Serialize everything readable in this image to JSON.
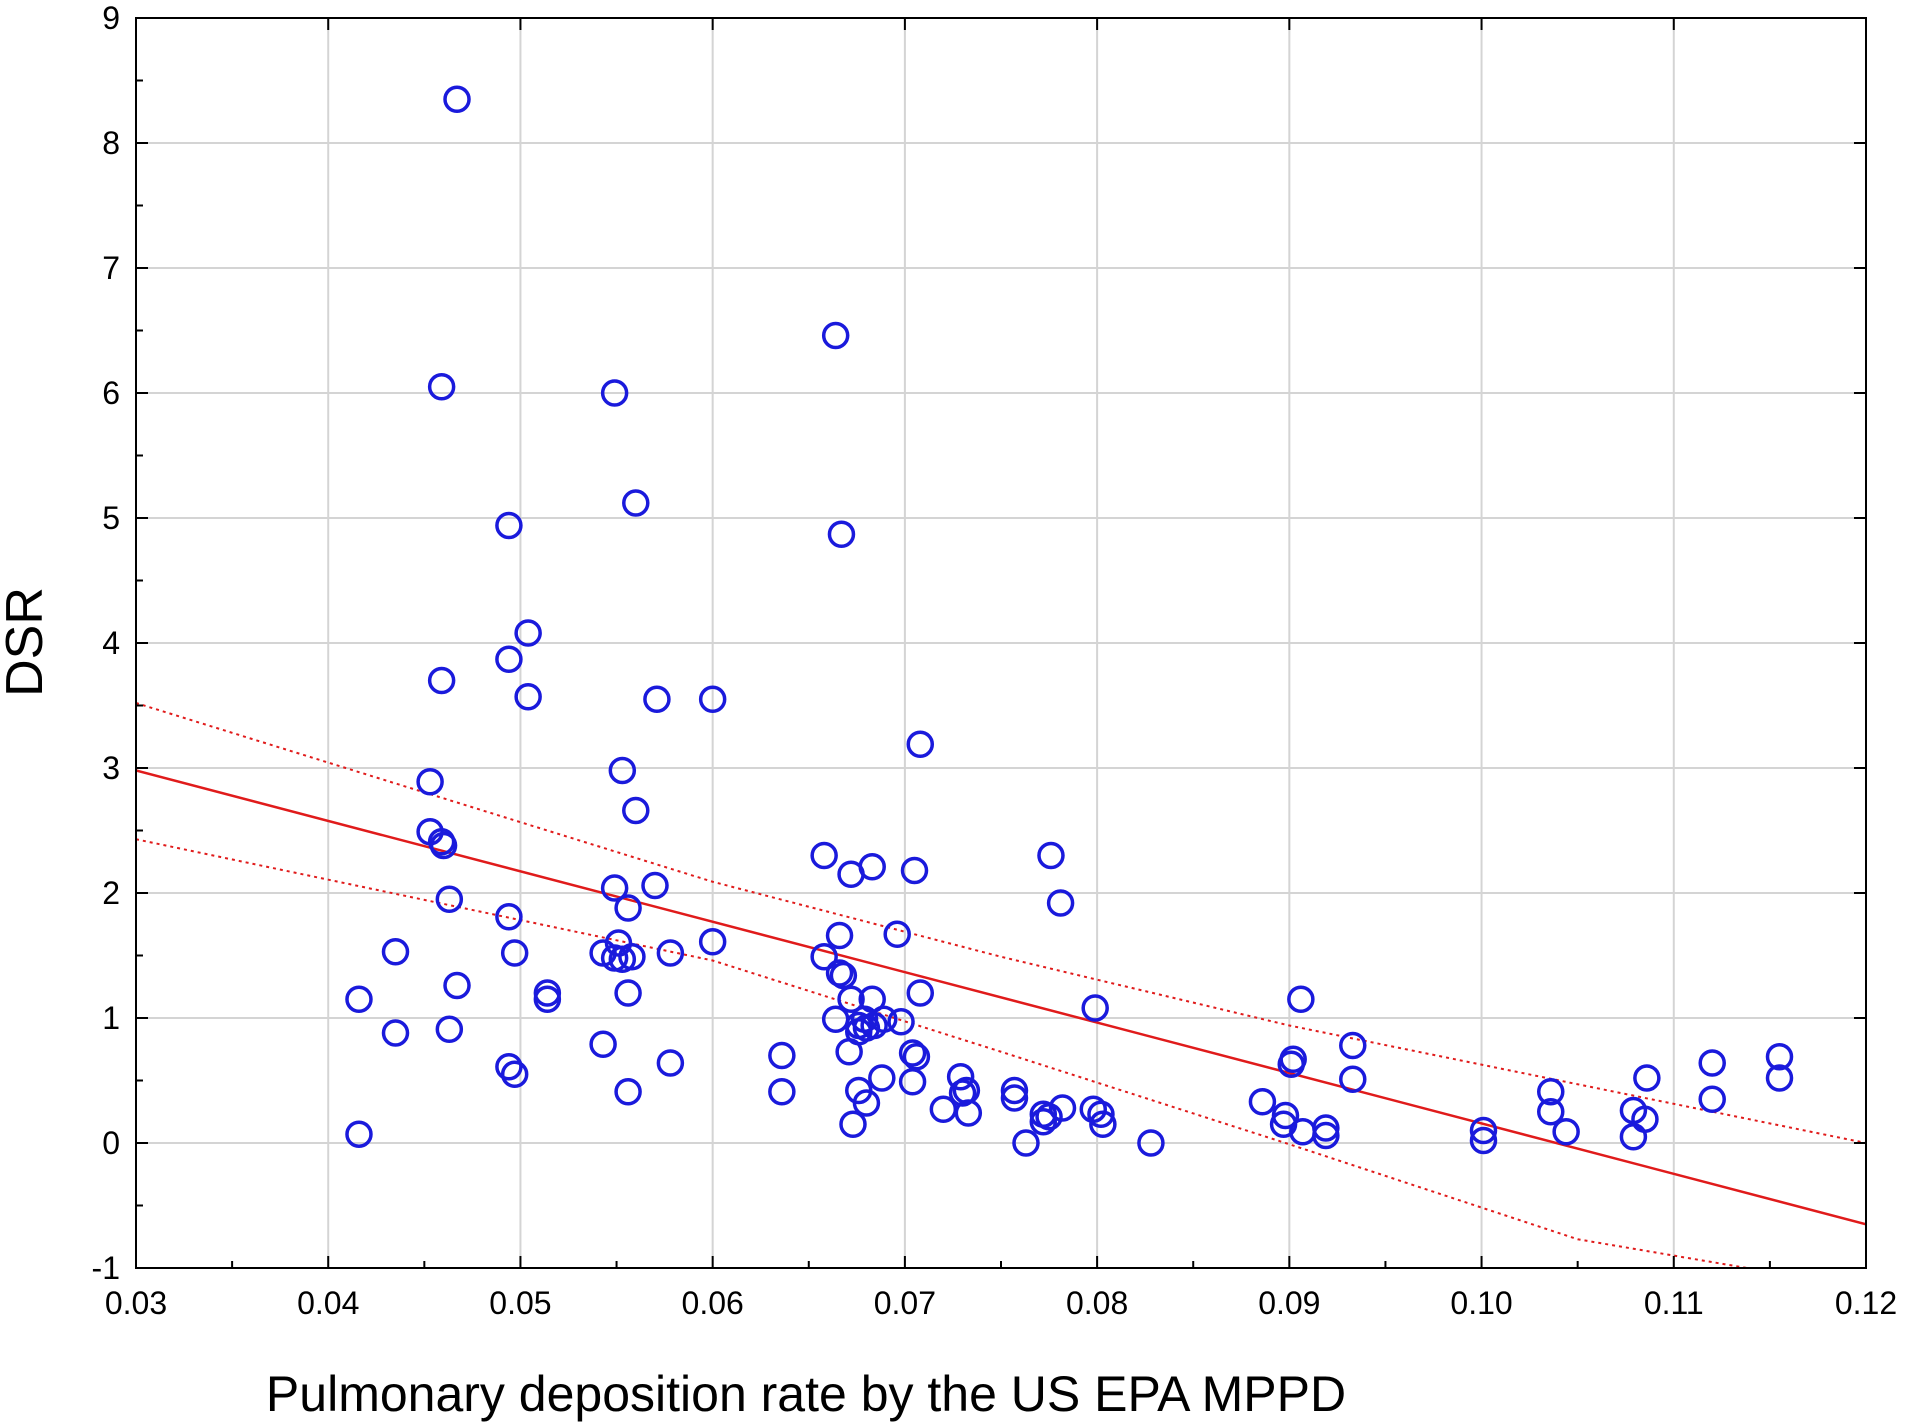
{
  "chart_data": {
    "type": "scatter",
    "title": "",
    "xlabel": "Pulmonary deposition rate by the US EPA MPPD",
    "ylabel": "DSR",
    "xlim": [
      0.03,
      0.12
    ],
    "ylim": [
      -1,
      9
    ],
    "x_ticks": [
      0.03,
      0.04,
      0.05,
      0.06,
      0.07,
      0.08,
      0.09,
      0.1,
      0.11,
      0.12
    ],
    "x_tick_labels": [
      "0.03",
      "0.04",
      "0.05",
      "0.06",
      "0.07",
      "0.08",
      "0.09",
      "0.10",
      "0.11",
      "0.12"
    ],
    "y_ticks": [
      -1,
      0,
      1,
      2,
      3,
      4,
      5,
      6,
      7,
      8,
      9
    ],
    "y_tick_labels": [
      "-1",
      "0",
      "1",
      "2",
      "3",
      "4",
      "5",
      "6",
      "7",
      "8",
      "9"
    ],
    "grid": true,
    "legend": "none",
    "colors": {
      "points": "#1a1adc",
      "fit": "#e01b1b",
      "ci": "#e01b1b",
      "grid": "#d4d4d4",
      "axes": "#000000"
    },
    "series": [
      {
        "name": "Observations",
        "marker": "open-circle",
        "points": [
          [
            0.0467,
            8.35
          ],
          [
            0.0664,
            6.46
          ],
          [
            0.0459,
            6.05
          ],
          [
            0.0549,
            6.0
          ],
          [
            0.056,
            5.12
          ],
          [
            0.0494,
            4.94
          ],
          [
            0.0667,
            4.87
          ],
          [
            0.0504,
            4.08
          ],
          [
            0.0494,
            3.87
          ],
          [
            0.0459,
            3.7
          ],
          [
            0.0504,
            3.57
          ],
          [
            0.0571,
            3.55
          ],
          [
            0.06,
            3.55
          ],
          [
            0.0708,
            3.19
          ],
          [
            0.0453,
            2.89
          ],
          [
            0.0553,
            2.98
          ],
          [
            0.056,
            2.66
          ],
          [
            0.0453,
            2.49
          ],
          [
            0.0459,
            2.41
          ],
          [
            0.046,
            2.38
          ],
          [
            0.0658,
            2.3
          ],
          [
            0.0672,
            2.15
          ],
          [
            0.0683,
            2.21
          ],
          [
            0.0705,
            2.18
          ],
          [
            0.0776,
            2.3
          ],
          [
            0.0781,
            1.92
          ],
          [
            0.0549,
            2.04
          ],
          [
            0.057,
            2.06
          ],
          [
            0.0463,
            1.95
          ],
          [
            0.0556,
            1.88
          ],
          [
            0.0494,
            1.81
          ],
          [
            0.0696,
            1.67
          ],
          [
            0.0666,
            1.66
          ],
          [
            0.06,
            1.61
          ],
          [
            0.0551,
            1.6
          ],
          [
            0.0435,
            1.53
          ],
          [
            0.0497,
            1.52
          ],
          [
            0.0543,
            1.52
          ],
          [
            0.0578,
            1.52
          ],
          [
            0.0549,
            1.48
          ],
          [
            0.0553,
            1.47
          ],
          [
            0.0558,
            1.49
          ],
          [
            0.0658,
            1.49
          ],
          [
            0.0666,
            1.36
          ],
          [
            0.0668,
            1.34
          ],
          [
            0.0467,
            1.26
          ],
          [
            0.0708,
            1.2
          ],
          [
            0.0514,
            1.2
          ],
          [
            0.0514,
            1.15
          ],
          [
            0.0556,
            1.2
          ],
          [
            0.0416,
            1.15
          ],
          [
            0.0672,
            1.15
          ],
          [
            0.0683,
            1.15
          ],
          [
            0.0906,
            1.15
          ],
          [
            0.0799,
            1.08
          ],
          [
            0.0664,
            0.99
          ],
          [
            0.0679,
            0.99
          ],
          [
            0.0689,
            0.99
          ],
          [
            0.0698,
            0.97
          ],
          [
            0.0676,
            0.94
          ],
          [
            0.0684,
            0.94
          ],
          [
            0.068,
            0.92
          ],
          [
            0.0676,
            0.89
          ],
          [
            0.0435,
            0.88
          ],
          [
            0.0463,
            0.91
          ],
          [
            0.0543,
            0.79
          ],
          [
            0.0933,
            0.78
          ],
          [
            0.0671,
            0.73
          ],
          [
            0.0636,
            0.7
          ],
          [
            0.0704,
            0.72
          ],
          [
            0.0706,
            0.69
          ],
          [
            0.0902,
            0.67
          ],
          [
            0.0901,
            0.63
          ],
          [
            0.112,
            0.64
          ],
          [
            0.1155,
            0.69
          ],
          [
            0.0578,
            0.64
          ],
          [
            0.0494,
            0.61
          ],
          [
            0.0497,
            0.55
          ],
          [
            0.0688,
            0.52
          ],
          [
            0.0704,
            0.49
          ],
          [
            0.0729,
            0.53
          ],
          [
            0.0933,
            0.51
          ],
          [
            0.1086,
            0.52
          ],
          [
            0.1155,
            0.52
          ],
          [
            0.0676,
            0.42
          ],
          [
            0.0636,
            0.41
          ],
          [
            0.0556,
            0.41
          ],
          [
            0.0732,
            0.42
          ],
          [
            0.073,
            0.4
          ],
          [
            0.0757,
            0.42
          ],
          [
            0.0757,
            0.36
          ],
          [
            0.1036,
            0.41
          ],
          [
            0.112,
            0.35
          ],
          [
            0.0886,
            0.33
          ],
          [
            0.068,
            0.32
          ],
          [
            0.072,
            0.27
          ],
          [
            0.0733,
            0.24
          ],
          [
            0.0772,
            0.23
          ],
          [
            0.0775,
            0.21
          ],
          [
            0.0782,
            0.28
          ],
          [
            0.0798,
            0.27
          ],
          [
            0.0802,
            0.23
          ],
          [
            0.0772,
            0.17
          ],
          [
            0.0803,
            0.15
          ],
          [
            0.0898,
            0.22
          ],
          [
            0.0897,
            0.15
          ],
          [
            0.0919,
            0.12
          ],
          [
            0.0907,
            0.09
          ],
          [
            0.0919,
            0.06
          ],
          [
            0.1036,
            0.25
          ],
          [
            0.1079,
            0.26
          ],
          [
            0.1085,
            0.19
          ],
          [
            0.1001,
            0.1
          ],
          [
            0.1044,
            0.09
          ],
          [
            0.1001,
            0.02
          ],
          [
            0.1079,
            0.05
          ],
          [
            0.0673,
            0.15
          ],
          [
            0.0416,
            0.07
          ],
          [
            0.0763,
            0.0
          ],
          [
            0.0828,
            0.0
          ]
        ]
      },
      {
        "name": "Linear fit",
        "style": "solid",
        "line": [
          [
            0.03,
            2.98
          ],
          [
            0.12,
            -0.65
          ]
        ]
      },
      {
        "name": "95% confidence band (upper)",
        "style": "dotted",
        "line": [
          [
            0.03,
            3.52
          ],
          [
            0.06,
            2.09
          ],
          [
            0.075,
            1.49
          ],
          [
            0.09,
            0.94
          ],
          [
            0.105,
            0.47
          ],
          [
            0.12,
            0.0
          ]
        ]
      },
      {
        "name": "95% confidence band (lower)",
        "style": "dotted",
        "line": [
          [
            0.03,
            2.43
          ],
          [
            0.06,
            1.46
          ],
          [
            0.075,
            0.73
          ],
          [
            0.09,
            -0.01
          ],
          [
            0.105,
            -0.77
          ],
          [
            0.1138,
            -1.0
          ]
        ]
      }
    ]
  }
}
